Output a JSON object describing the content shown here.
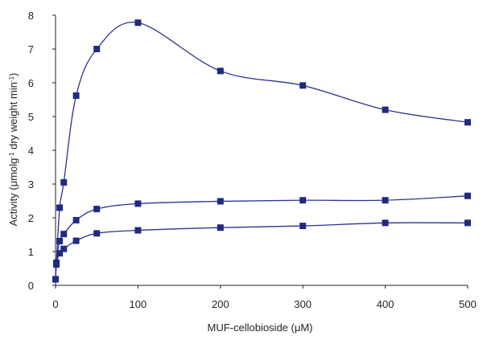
{
  "chart_data": {
    "type": "line",
    "xlabel": "MUF-cellobioside (μM)",
    "ylabel_main": "Activity (μmolg",
    "ylabel_sup1": "-1",
    "ylabel_mid": " dry weight min",
    "ylabel_sup2": "-1",
    "ylabel_end": ")",
    "xlim": [
      0,
      500
    ],
    "ylim": [
      0,
      8
    ],
    "xticks": [
      "0",
      "100",
      "200",
      "300",
      "400",
      "500"
    ],
    "yticks": [
      "0",
      "1",
      "2",
      "3",
      "4",
      "5",
      "6",
      "7",
      "8"
    ],
    "grid": false,
    "legend": "none",
    "series_color": "#2e3192",
    "marker_color": "#1f2a80",
    "series": [
      {
        "x": [
          0,
          1,
          5,
          10,
          25,
          50,
          100,
          200,
          300,
          400,
          500
        ],
        "y": [
          0.18,
          0.62,
          2.3,
          3.05,
          5.62,
          7.0,
          7.78,
          6.35,
          5.92,
          5.2,
          4.83
        ]
      },
      {
        "x": [
          0,
          1,
          5,
          10,
          25,
          50,
          100,
          200,
          300,
          400,
          500
        ],
        "y": [
          0.18,
          0.67,
          1.31,
          1.52,
          1.93,
          2.26,
          2.42,
          2.49,
          2.52,
          2.52,
          2.65
        ]
      },
      {
        "x": [
          0,
          1,
          5,
          10,
          25,
          50,
          100,
          200,
          300,
          400,
          500
        ],
        "y": [
          0.18,
          0.63,
          0.95,
          1.08,
          1.32,
          1.54,
          1.63,
          1.71,
          1.76,
          1.85,
          1.85
        ]
      }
    ]
  }
}
